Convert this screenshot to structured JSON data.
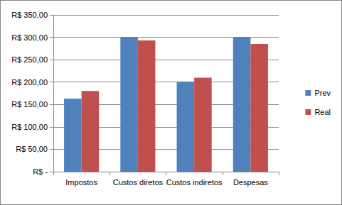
{
  "chart_data": {
    "type": "bar",
    "categories": [
      "Impostos",
      "Custos diretos",
      "Custos indiretos",
      "Despesas"
    ],
    "series": [
      {
        "name": "Prev",
        "color": "#4f81bd",
        "values": [
          163,
          300,
          200,
          300
        ]
      },
      {
        "name": "Real",
        "color": "#c0504d",
        "values": [
          180,
          293,
          210,
          285
        ]
      }
    ],
    "ylim": [
      0,
      350
    ],
    "yticks": [
      {
        "value": 0,
        "label": "R$ -"
      },
      {
        "value": 50,
        "label": "R$ 50,00"
      },
      {
        "value": 100,
        "label": "R$ 100,00"
      },
      {
        "value": 150,
        "label": "R$ 150,00"
      },
      {
        "value": 200,
        "label": "R$ 200,00"
      },
      {
        "value": 250,
        "label": "R$ 250,00"
      },
      {
        "value": 300,
        "label": "R$ 300,00"
      },
      {
        "value": 350,
        "label": "R$ 350,00"
      }
    ],
    "grid": true,
    "legend": "right"
  }
}
